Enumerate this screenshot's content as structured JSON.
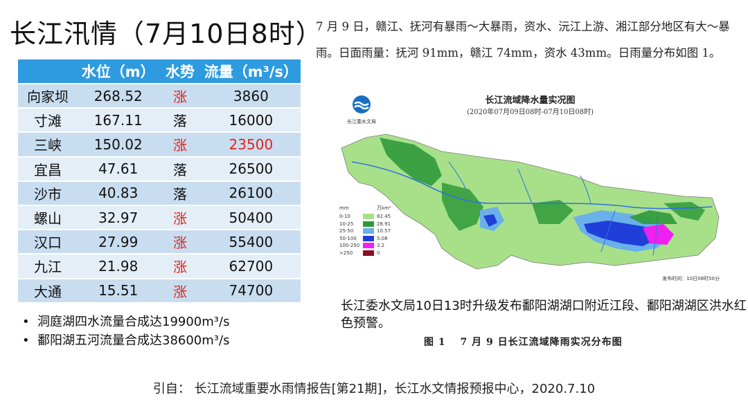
{
  "title": "长江汛情（7月10日8时）",
  "table": {
    "headers": [
      "",
      "水位（m）",
      "水势",
      "流量（m³/s）"
    ],
    "rows": [
      {
        "station": "向家坝",
        "level": "268.52",
        "trend": "涨",
        "flow": "3860"
      },
      {
        "station": "寸滩",
        "level": "167.11",
        "trend": "落",
        "flow": "16000"
      },
      {
        "station": "三峡",
        "level": "150.02",
        "trend": "涨",
        "flow": "23500"
      },
      {
        "station": "宜昌",
        "level": "47.61",
        "trend": "落",
        "flow": "26500"
      },
      {
        "station": "沙市",
        "level": "40.83",
        "trend": "落",
        "flow": "26100"
      },
      {
        "station": "螺山",
        "level": "32.97",
        "trend": "涨",
        "flow": "50400"
      },
      {
        "station": "汉口",
        "level": "27.99",
        "trend": "涨",
        "flow": "55400"
      },
      {
        "station": "九江",
        "level": "21.98",
        "trend": "涨",
        "flow": "62700"
      },
      {
        "station": "大通",
        "level": "15.51",
        "trend": "涨",
        "flow": "74700"
      }
    ],
    "red_color": "#e0241b",
    "header_color": "#2e9be0"
  },
  "bullets": [
    "洞庭湖四水流量合成达19900m³/s",
    "鄱阳湖五河流量合成达38600m³/s"
  ],
  "rain_paragraph": "7 月 9 日，赣江、抚河有暴雨～大暴雨，资水、沅江上游、湘江部分地区有大～暴雨。日面雨量：抚河 91mm，赣江 74mm，资水 43mm。日雨量分布如图 1。",
  "map": {
    "title": "长江流域降水量实况图",
    "subtitle": "(2020年07月09日08时-07月10日08时)",
    "logo_text": "长江委水文局",
    "legend_header_left": "mm",
    "legend_header_right": "万km²",
    "legend": [
      {
        "range": "0-10",
        "color": "#a8e08a",
        "area": "82.45"
      },
      {
        "range": "10-25",
        "color": "#2f9a3a",
        "area": "28.91"
      },
      {
        "range": "25-50",
        "color": "#6ab0ea",
        "area": "10.57"
      },
      {
        "range": "50-100",
        "color": "#1f3fd8",
        "area": "5.08"
      },
      {
        "range": "100-250",
        "color": "#f020f0",
        "area": "3.2"
      },
      {
        "range": ">250",
        "color": "#8a1020",
        "area": "0"
      }
    ],
    "issue_time": "发布时间：10日08时50分"
  },
  "warning": "长江委水文局10日13时升级发布鄱阳湖湖口附近江段、鄱阳湖湖区洪水红色预警。",
  "figure_caption": "图 1　 7 月 9 日长江流域降雨实况分布图",
  "source": "引自：  长江流域重要水雨情报告[第21期]，长江水文情报预报中心，2020.7.10"
}
